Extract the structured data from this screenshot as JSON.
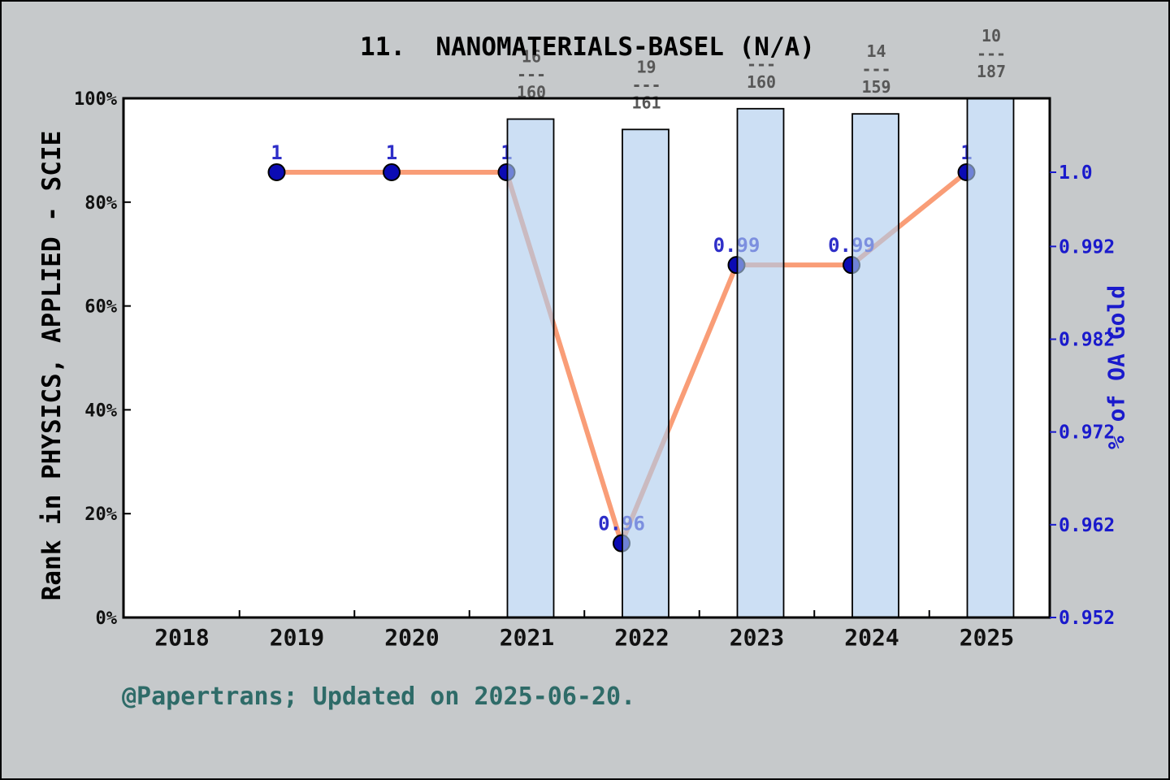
{
  "title": "11.  NANOMATERIALS-BASEL (N/A)",
  "caption": "@Papertrans; Updated on 2025-06-20.",
  "left_axis": {
    "label": "Rank in PHYSICS, APPLIED - SCIE",
    "tick_labels": [
      "0%",
      "20%",
      "40%",
      "60%",
      "80%",
      "100%"
    ],
    "tick_values": [
      0,
      20,
      40,
      60,
      80,
      100
    ],
    "range": [
      0,
      100
    ]
  },
  "right_axis": {
    "label": "% of OA Gold",
    "tick_labels": [
      "0.952",
      "0.962",
      "0.972",
      "0.982",
      "0.992",
      "1.0"
    ],
    "tick_values": [
      0.952,
      0.962,
      0.972,
      0.982,
      0.992,
      1.0
    ],
    "range": [
      0.952,
      1.0
    ]
  },
  "x_axis": {
    "tick_labels": [
      "2018",
      "2019",
      "2020",
      "2021",
      "2022",
      "2023",
      "2024",
      "2025"
    ],
    "tick_values": [
      2018,
      2019,
      2020,
      2021,
      2022,
      2023,
      2024,
      2025
    ]
  },
  "chart_data": [
    {
      "type": "bar",
      "name": "rank-percentile-bars",
      "axis": "left",
      "categories": [
        2021,
        2022,
        2023,
        2024,
        2025
      ],
      "values": [
        96,
        94,
        98,
        97,
        100
      ],
      "value_unit": "%",
      "fraction_labels": [
        {
          "numerator": "16",
          "denominator": "160"
        },
        {
          "numerator": "19",
          "denominator": "161"
        },
        {
          "numerator": "",
          "denominator": "160"
        },
        {
          "numerator": "14",
          "denominator": "159"
        },
        {
          "numerator": "10",
          "denominator": "187"
        }
      ],
      "fraction_rule": "---"
    },
    {
      "type": "line",
      "name": "oa-gold-line",
      "axis": "right",
      "x": [
        2019,
        2020,
        2021,
        2022,
        2023,
        2024,
        2025
      ],
      "values": [
        1.0,
        1.0,
        1.0,
        0.96,
        0.99,
        0.99,
        1.0
      ],
      "point_labels": [
        "1",
        "1",
        "1",
        "0.96",
        "0.99",
        "0.99",
        "1"
      ]
    }
  ],
  "colors": {
    "background": "#c6c9cb",
    "plot_background": "#ffffff",
    "spine": "#000000",
    "bar_fill": "#accce e-trimmed",
    "bar_fill_rgb": "172,204,238",
    "bar_fill_opacity": "0.62",
    "bar_border": "#000000",
    "line": "#f99d77",
    "marker_fill": "#0b0bb4",
    "marker_edge": "#000000",
    "point_label": "#2e2ec8",
    "right_axis_text": "#1a1acc",
    "fraction_text": "#575757",
    "caption_text": "#2e6b68",
    "axis_text": "#111111"
  }
}
